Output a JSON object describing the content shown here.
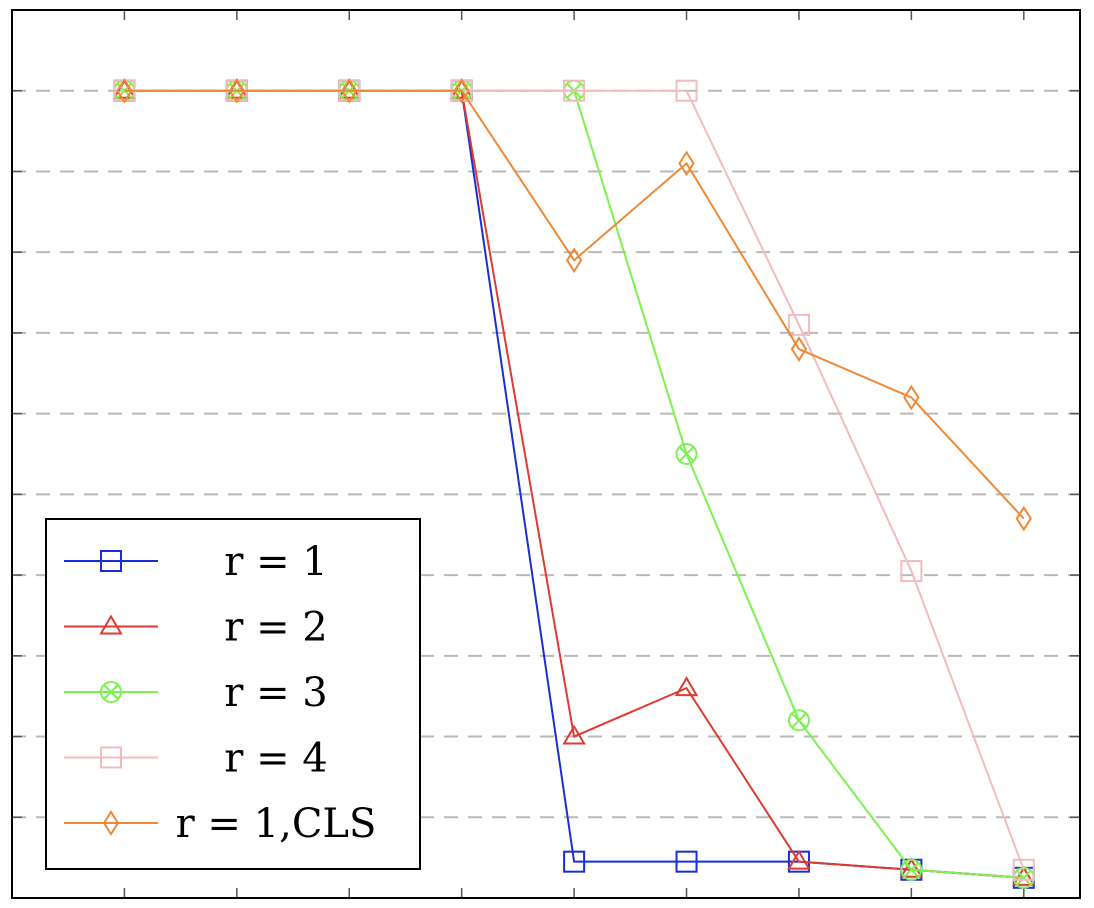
{
  "chart_data": {
    "type": "line",
    "x": [
      1,
      2,
      3,
      4,
      5,
      6,
      7,
      8,
      9
    ],
    "xlim": [
      0,
      9.5
    ],
    "ylim": [
      0,
      1.1
    ],
    "grid": "horizontal-dashed",
    "legend_position": "lower-left",
    "series": [
      {
        "name": "r = 1",
        "color": "#1a2ed6",
        "marker": "square",
        "values": [
          1,
          1,
          1,
          1,
          0.045,
          0.045,
          0.045,
          0.035,
          0.025
        ]
      },
      {
        "name": "r = 2",
        "color": "#e03a32",
        "marker": "triangle",
        "values": [
          1,
          1,
          1,
          1,
          0.2,
          0.26,
          0.045,
          0.035,
          0.025
        ]
      },
      {
        "name": "r = 3",
        "color": "#7cf24e",
        "marker": "circle-x",
        "values": [
          1,
          1,
          1,
          1,
          1,
          0.55,
          0.22,
          0.035,
          0.025
        ]
      },
      {
        "name": "r = 4",
        "color": "#f2bcbc",
        "marker": "square",
        "values": [
          1,
          1,
          1,
          1,
          1,
          1,
          0.71,
          0.405,
          0.035
        ]
      },
      {
        "name": "r = 1,CLS",
        "color": "#ec8a37",
        "marker": "diamond",
        "values": [
          1,
          1,
          1,
          1,
          0.79,
          0.91,
          0.68,
          0.62,
          0.47
        ]
      }
    ]
  }
}
